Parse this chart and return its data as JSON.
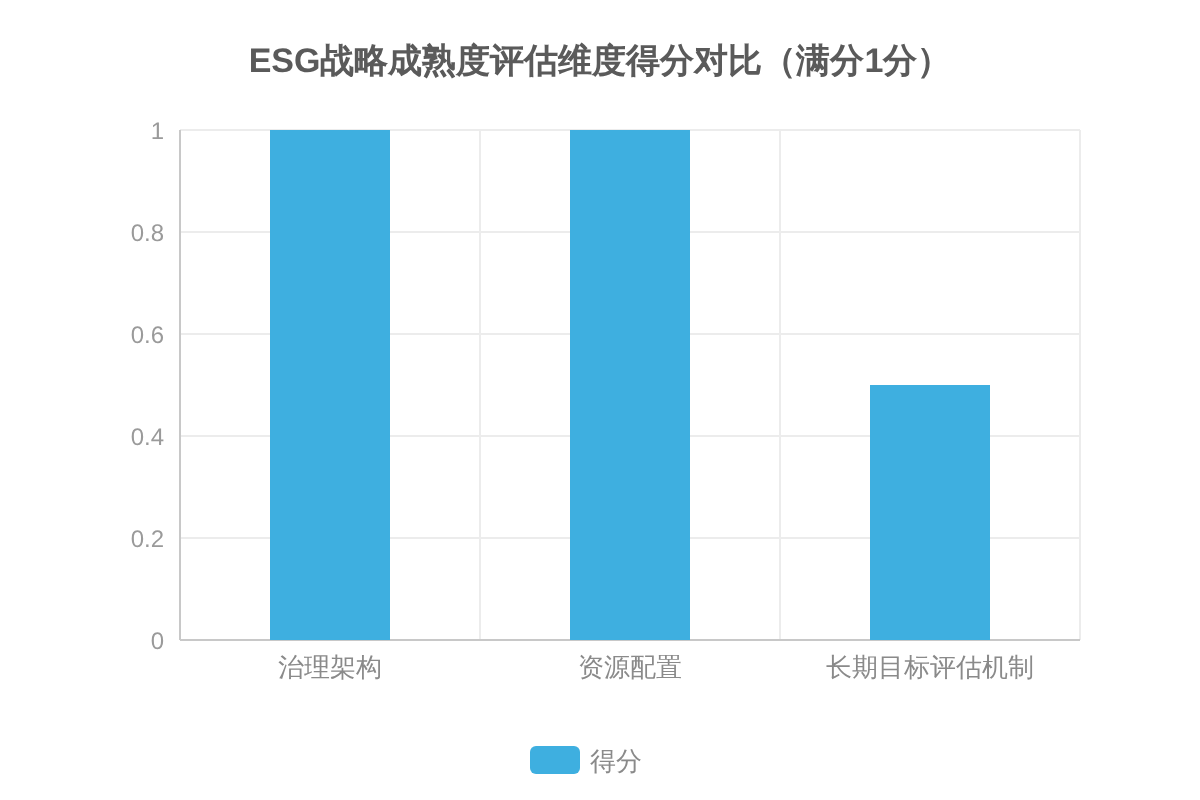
{
  "chart_data": {
    "type": "bar",
    "title": "ESG战略成熟度评估维度得分对比（满分1分）",
    "categories": [
      "治理架构",
      "资源配置",
      "长期目标评估机制"
    ],
    "series": [
      {
        "name": "得分",
        "color": "#3eafe0",
        "values": [
          1,
          1,
          0.5
        ]
      }
    ],
    "ylim": [
      0,
      1
    ],
    "yticks": [
      0,
      0.2,
      0.4,
      0.6,
      0.8,
      1
    ],
    "grid": true,
    "legend": "bottom"
  }
}
